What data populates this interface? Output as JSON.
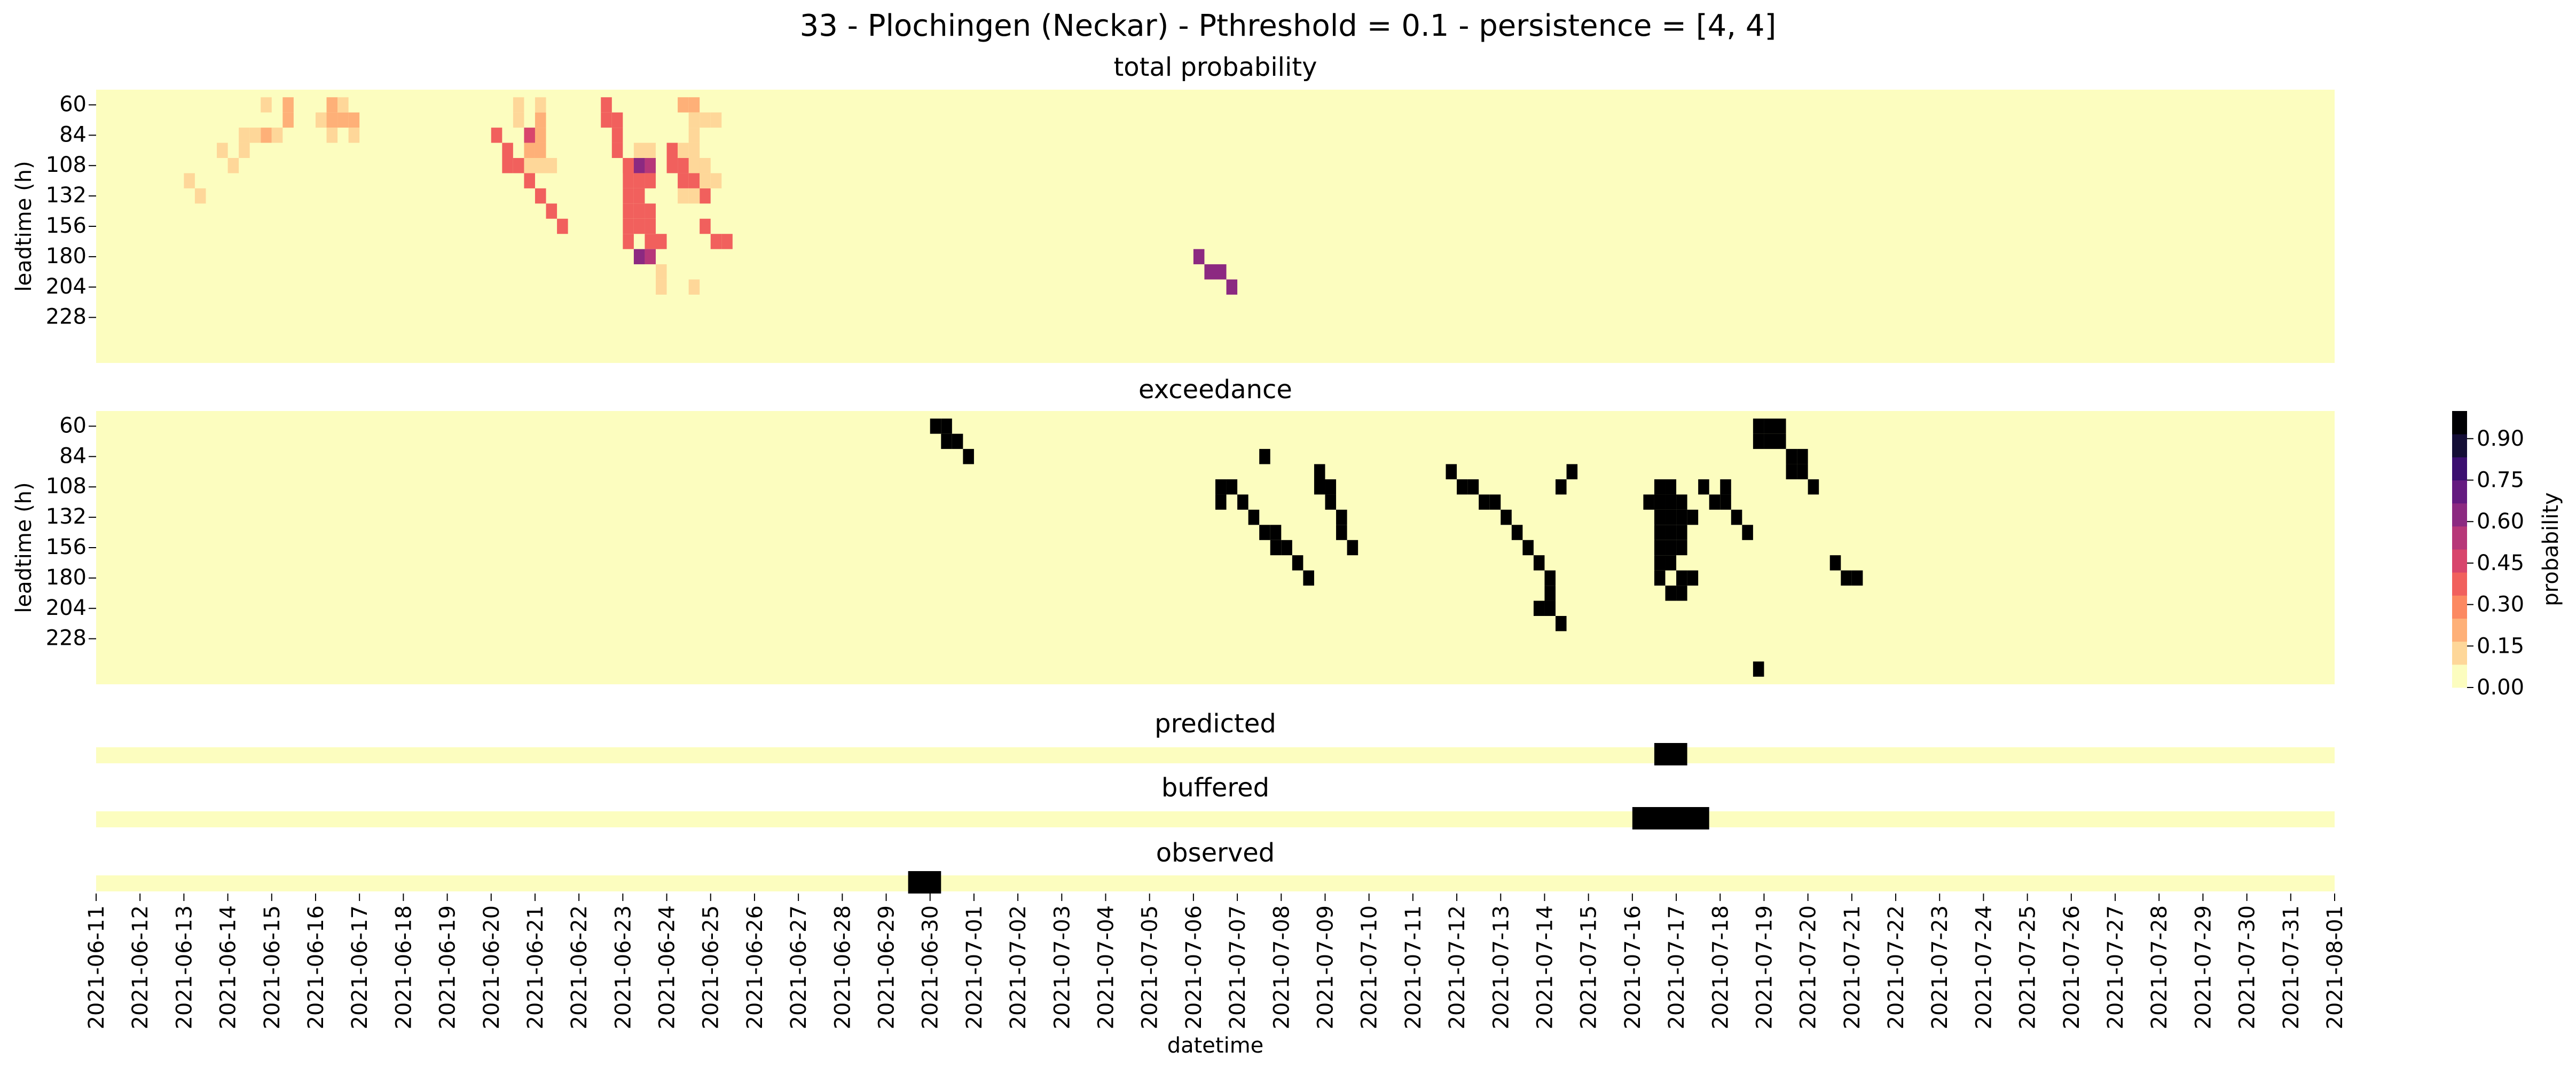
{
  "title": "33 - Plochingen (Neckar) - Pthreshold = 0.1 - persistence = [4, 4]",
  "ylabel": "leadtime (h)",
  "xlabel": "datetime",
  "colorbar_label": "probability",
  "colorbar_ticks": [
    "0.00",
    "0.15",
    "0.30",
    "0.45",
    "0.60",
    "0.75",
    "0.90"
  ],
  "colors": {
    "palette": [
      "#fcfdbf",
      "#fed799",
      "#feb078",
      "#fc8961",
      "#f1605d",
      "#d8456c",
      "#b73779",
      "#8c2981",
      "#641a80",
      "#3b0f70",
      "#140e36",
      "#000004"
    ],
    "binary_off": "#fcfdbf",
    "binary_on": "#000000"
  },
  "chart_data": {
    "type": "heatmap",
    "dates": [
      "2021-06-11",
      "2021-06-12",
      "2021-06-13",
      "2021-06-14",
      "2021-06-15",
      "2021-06-16",
      "2021-06-17",
      "2021-06-18",
      "2021-06-19",
      "2021-06-20",
      "2021-06-21",
      "2021-06-22",
      "2021-06-23",
      "2021-06-24",
      "2021-06-25",
      "2021-06-26",
      "2021-06-27",
      "2021-06-28",
      "2021-06-29",
      "2021-06-30",
      "2021-07-01",
      "2021-07-02",
      "2021-07-03",
      "2021-07-04",
      "2021-07-05",
      "2021-07-06",
      "2021-07-07",
      "2021-07-08",
      "2021-07-09",
      "2021-07-10",
      "2021-07-11",
      "2021-07-12",
      "2021-07-13",
      "2021-07-14",
      "2021-07-15",
      "2021-07-16",
      "2021-07-17",
      "2021-07-18",
      "2021-07-19",
      "2021-07-20",
      "2021-07-21",
      "2021-07-22",
      "2021-07-23",
      "2021-07-24",
      "2021-07-25",
      "2021-07-26",
      "2021-07-27",
      "2021-07-28",
      "2021-07-29",
      "2021-07-30",
      "2021-07-31",
      "2021-08-01"
    ],
    "leadtimes_labeled": [
      "60",
      "84",
      "108",
      "132",
      "156",
      "180",
      "204",
      "228"
    ],
    "steps_per_day": 4,
    "leadtime_rows": 16,
    "colorbar_range": [
      0,
      1
    ],
    "panels": [
      {
        "title": "total probability",
        "kind": "probability",
        "cells": [
          [
            0,
            60,
            0.1
          ],
          [
            2,
            60,
            0.15
          ],
          [
            2,
            72,
            0.15
          ],
          [
            0,
            84,
            0.15
          ],
          [
            -1,
            84,
            0.05
          ],
          [
            1,
            84,
            0.1
          ],
          [
            -2,
            84,
            0.05
          ],
          [
            -2,
            96,
            0.1
          ],
          [
            -4,
            96,
            0.05
          ],
          [
            -3,
            108,
            0.1
          ],
          [
            -7,
            120,
            0.05
          ],
          [
            -6,
            132,
            0.05
          ],
          [
            2,
            60,
            0.15
          ],
          [
            2,
            72,
            0.15
          ],
          [
            3,
            72,
            0.15
          ],
          [
            3,
            60,
            0.1
          ],
          [
            4,
            72,
            0.15
          ],
          [
            1,
            72,
            0.1
          ],
          [
            2,
            84,
            0.1
          ],
          [
            4,
            84,
            0.05
          ],
          [
            1,
            60,
            0.1
          ],
          [
            1,
            72,
            0.1
          ],
          [
            2,
            84,
            0.45
          ],
          [
            2,
            96,
            0.15
          ],
          [
            3,
            96,
            0.15
          ],
          [
            2,
            108,
            0.05
          ],
          [
            4,
            108,
            0.05
          ],
          [
            3,
            108,
            0.1
          ],
          [
            2,
            120,
            0.05
          ],
          [
            3,
            84,
            0.15
          ],
          [
            3,
            72,
            0.15
          ],
          [
            3,
            60,
            0.1
          ],
          [
            -2,
            84,
            0.35
          ],
          [
            -1,
            96,
            0.35
          ],
          [
            -1,
            108,
            0.35
          ],
          [
            0,
            108,
            0.35
          ],
          [
            1,
            120,
            0.35
          ],
          [
            2,
            132,
            0.35
          ],
          [
            3,
            144,
            0.4
          ],
          [
            4,
            156,
            0.35
          ],
          [
            1,
            60,
            0.35
          ],
          [
            1,
            72,
            0.35
          ],
          [
            2,
            72,
            0.35
          ],
          [
            2,
            84,
            0.35
          ],
          [
            2,
            96,
            0.35
          ],
          [
            3,
            108,
            0.35
          ],
          [
            -1,
            108,
            0.4
          ],
          [
            0,
            108,
            0.6
          ],
          [
            1,
            108,
            0.5
          ],
          [
            -1,
            120,
            0.4
          ],
          [
            0,
            120,
            0.4
          ],
          [
            1,
            120,
            0.4
          ],
          [
            -1,
            132,
            0.4
          ],
          [
            0,
            132,
            0.4
          ],
          [
            -1,
            144,
            0.4
          ],
          [
            0,
            144,
            0.4
          ],
          [
            1,
            144,
            0.4
          ],
          [
            -1,
            156,
            0.4
          ],
          [
            0,
            156,
            0.4
          ],
          [
            1,
            156,
            0.4
          ],
          [
            -1,
            168,
            0.35
          ],
          [
            1,
            168,
            0.35
          ],
          [
            2,
            168,
            0.35
          ],
          [
            0,
            180,
            0.6
          ],
          [
            1,
            180,
            0.5
          ],
          [
            0,
            96,
            0.1
          ],
          [
            1,
            96,
            0.1
          ],
          [
            3,
            108,
            0.4
          ],
          [
            4,
            108,
            0.35
          ],
          [
            5,
            108,
            0.4
          ],
          [
            4,
            120,
            0.35
          ],
          [
            5,
            120,
            0.35
          ],
          [
            6,
            132,
            0.35
          ],
          [
            4,
            132,
            0.1
          ],
          [
            5,
            132,
            0.1
          ],
          [
            3,
            96,
            0.35
          ],
          [
            2,
            192,
            0.1
          ],
          [
            2,
            204,
            0.1
          ],
          [
            5,
            204,
            0.05
          ],
          [
            1,
            156,
            0.35
          ],
          [
            2,
            168,
            0.35
          ],
          [
            3,
            168,
            0.35
          ],
          [
            -4,
            180,
            0.6
          ],
          [
            -3,
            192,
            0.6
          ],
          [
            -2,
            192,
            0.6
          ],
          [
            -1,
            204,
            0.6
          ],
          [
            -6,
            60,
            0.15
          ],
          [
            -5,
            60,
            0.15
          ],
          [
            -5,
            72,
            0.1
          ],
          [
            -4,
            72,
            0.1
          ],
          [
            -3,
            72,
            0.1
          ],
          [
            -5,
            96,
            0.1
          ],
          [
            -6,
            96,
            0.1
          ],
          [
            -5,
            108,
            0.1
          ],
          [
            -4,
            108,
            0.05
          ],
          [
            -4,
            120,
            0.1
          ],
          [
            -3,
            120,
            0.1
          ],
          [
            -5,
            84,
            0.05
          ]
        ],
        "cell_anchor_days": [
          15,
          15,
          15,
          15,
          15,
          15,
          15,
          15,
          15,
          15,
          15,
          15,
          19,
          19,
          19,
          19,
          19,
          19,
          19,
          19,
          37,
          37,
          37,
          37,
          37,
          37,
          37,
          37,
          37,
          37,
          37,
          37,
          38,
          38,
          38,
          38,
          38,
          38,
          38,
          38,
          45,
          45,
          45,
          45,
          45,
          45,
          49,
          49,
          49,
          49,
          49,
          49,
          49,
          49,
          49,
          49,
          49,
          49,
          49,
          49,
          49,
          49,
          49,
          49,
          49,
          49,
          49,
          49,
          49,
          49,
          49,
          49,
          49,
          49,
          49,
          49,
          49,
          49,
          49,
          54,
          54,
          54,
          104,
          104,
          104,
          104,
          0,
          0,
          0,
          0,
          0,
          0,
          0,
          0,
          0,
          0,
          0,
          0
        ]
      },
      {
        "title": "exceedance",
        "kind": "binary",
        "cells": [
          [
            76,
            60
          ],
          [
            77,
            60
          ],
          [
            77,
            72
          ],
          [
            78,
            72
          ],
          [
            79,
            84
          ],
          [
            102,
            108
          ],
          [
            103,
            108
          ],
          [
            102,
            120
          ],
          [
            104,
            120
          ],
          [
            105,
            132
          ],
          [
            106,
            144
          ],
          [
            107,
            144
          ],
          [
            107,
            156
          ],
          [
            108,
            156
          ],
          [
            109,
            168
          ],
          [
            110,
            180
          ],
          [
            111,
            96
          ],
          [
            111,
            108
          ],
          [
            112,
            108
          ],
          [
            112,
            120
          ],
          [
            113,
            132
          ],
          [
            113,
            144
          ],
          [
            114,
            156
          ],
          [
            106,
            84
          ],
          [
            123,
            96
          ],
          [
            124,
            108
          ],
          [
            125,
            108
          ],
          [
            126,
            120
          ],
          [
            127,
            120
          ],
          [
            128,
            132
          ],
          [
            129,
            144
          ],
          [
            130,
            156
          ],
          [
            131,
            168
          ],
          [
            132,
            180
          ],
          [
            134,
            96
          ],
          [
            133,
            108
          ],
          [
            132,
            192
          ],
          [
            131,
            204
          ],
          [
            132,
            204
          ],
          [
            133,
            216
          ],
          [
            142,
            108
          ],
          [
            143,
            108
          ],
          [
            141,
            120
          ],
          [
            142,
            120
          ],
          [
            143,
            120
          ],
          [
            144,
            120
          ],
          [
            142,
            132
          ],
          [
            143,
            132
          ],
          [
            144,
            132
          ],
          [
            145,
            132
          ],
          [
            142,
            144
          ],
          [
            143,
            144
          ],
          [
            144,
            144
          ],
          [
            142,
            156
          ],
          [
            143,
            156
          ],
          [
            144,
            156
          ],
          [
            142,
            168
          ],
          [
            143,
            168
          ],
          [
            142,
            180
          ],
          [
            144,
            180
          ],
          [
            145,
            180
          ],
          [
            143,
            192
          ],
          [
            144,
            192
          ],
          [
            146,
            108
          ],
          [
            147,
            120
          ],
          [
            148,
            120
          ],
          [
            149,
            132
          ],
          [
            150,
            144
          ],
          [
            148,
            108
          ],
          [
            151,
            60
          ],
          [
            152,
            60
          ],
          [
            153,
            60
          ],
          [
            151,
            72
          ],
          [
            152,
            72
          ],
          [
            153,
            72
          ],
          [
            154,
            84
          ],
          [
            155,
            84
          ],
          [
            154,
            96
          ],
          [
            155,
            96
          ],
          [
            156,
            108
          ],
          [
            158,
            168
          ],
          [
            159,
            180
          ],
          [
            160,
            180
          ],
          [
            151,
            252
          ]
        ]
      },
      {
        "title": "predicted",
        "kind": "binary_row",
        "on_days": [
          [
            142,
            145
          ]
        ]
      },
      {
        "title": "buffered",
        "kind": "binary_row",
        "on_days": [
          [
            140,
            147
          ]
        ]
      },
      {
        "title": "observed",
        "kind": "binary_row",
        "on_days": [
          [
            74,
            77
          ]
        ]
      }
    ]
  }
}
